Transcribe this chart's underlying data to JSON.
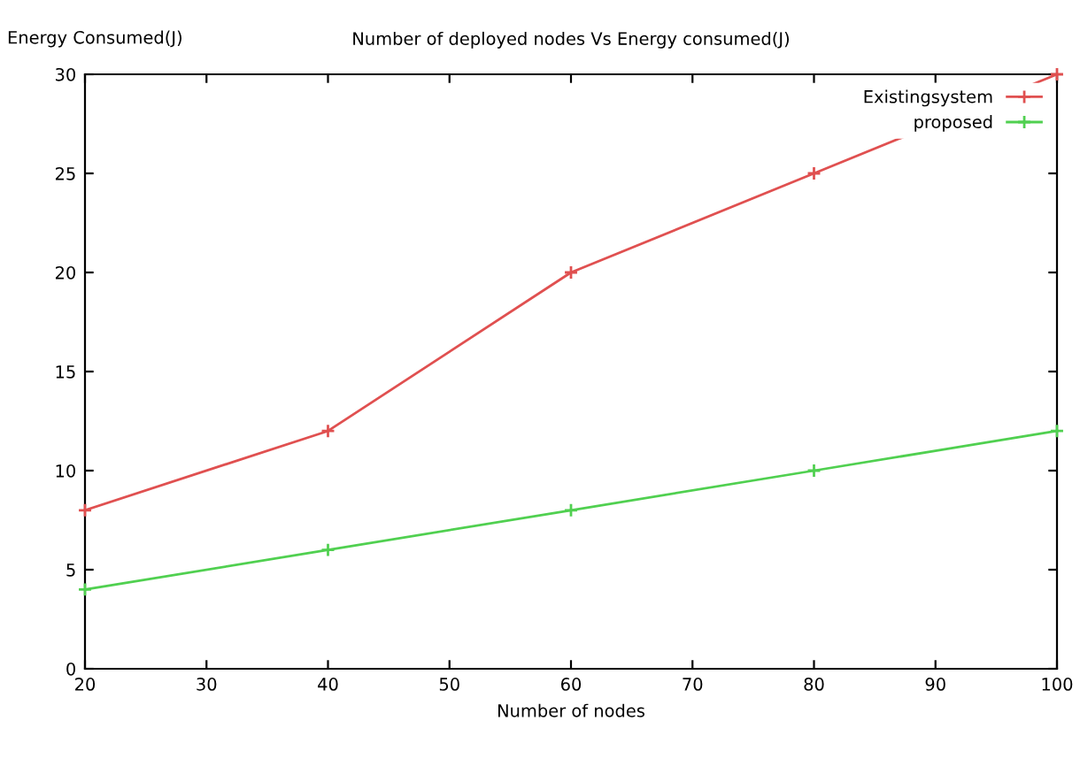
{
  "chart_data": {
    "type": "line",
    "title": "Number of deployed nodes Vs Energy consumed(J)",
    "xlabel": "Number of nodes",
    "ylabel": "Energy Consumed(J)",
    "x": [
      20,
      40,
      60,
      80,
      100
    ],
    "series": [
      {
        "name": "Existingsystem",
        "color": "#e05050",
        "values": [
          8,
          12,
          20,
          25,
          30
        ]
      },
      {
        "name": "proposed",
        "color": "#50d050",
        "values": [
          4,
          6,
          8,
          10,
          12
        ]
      }
    ],
    "xlim": [
      20,
      100
    ],
    "xticks": [
      20,
      30,
      40,
      50,
      60,
      70,
      80,
      90,
      100
    ],
    "ylim": [
      0,
      30
    ],
    "yticks": [
      0,
      5,
      10,
      15,
      20,
      25,
      30
    ],
    "grid": false,
    "legend": "top right",
    "marker": "cross",
    "line_style": "solid"
  }
}
